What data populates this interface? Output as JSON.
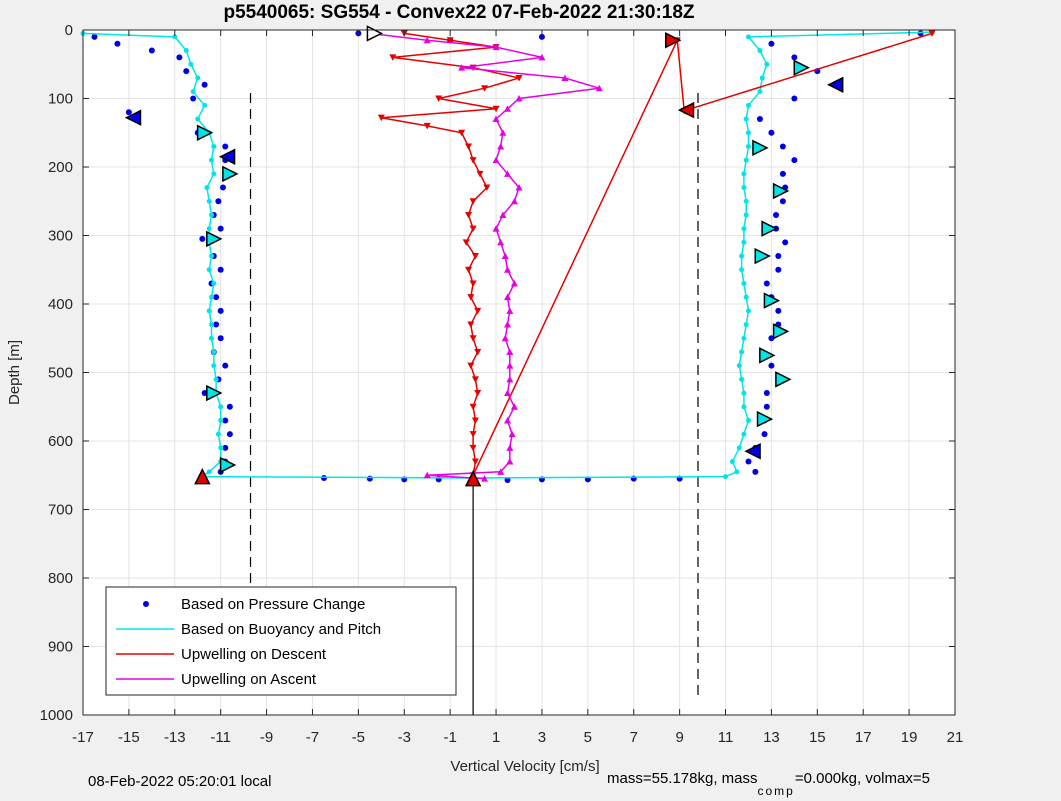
{
  "chart_data": {
    "type": "scatter",
    "title": "p5540065: SG554 - Convex22 07-Feb-2022 21:30:18Z",
    "xlabel": "Vertical Velocity [cm/s]",
    "ylabel": "Depth [m]",
    "xlim": [
      -17,
      21
    ],
    "ylim": [
      0,
      1000
    ],
    "y_reversed": true,
    "grid": true,
    "xticks": [
      -17,
      -15,
      -13,
      -11,
      -9,
      -7,
      -5,
      -3,
      -1,
      1,
      3,
      5,
      7,
      9,
      11,
      13,
      15,
      17,
      19,
      21
    ],
    "yticks": [
      0,
      100,
      200,
      300,
      400,
      500,
      600,
      700,
      800,
      900,
      1000
    ],
    "reference_lines": {
      "dashed_x": [
        -9.7,
        9.8
      ],
      "solid_x": [
        0
      ]
    },
    "legend": {
      "placement": "bottom-left",
      "entries": [
        {
          "label": "Based on Pressure Change",
          "color": "#0000e6",
          "style": "dots"
        },
        {
          "label": "Based on Buoyancy and Pitch",
          "color": "#00e6e6",
          "style": "line"
        },
        {
          "label": "Upwelling on Descent",
          "color": "#e60000",
          "style": "line"
        },
        {
          "label": "Upwelling on Ascent",
          "color": "#e600e6",
          "style": "line"
        }
      ]
    },
    "series": [
      {
        "name": "Based on Pressure Change",
        "color": "#0000e6",
        "points": [
          [
            -16.5,
            10
          ],
          [
            -15.5,
            20
          ],
          [
            -14.0,
            30
          ],
          [
            -12.8,
            40
          ],
          [
            -12.5,
            60
          ],
          [
            -11.7,
            80
          ],
          [
            -12.2,
            100
          ],
          [
            -15.0,
            120
          ],
          [
            -14.8,
            128
          ],
          [
            -12.0,
            150
          ],
          [
            -10.8,
            170
          ],
          [
            -10.8,
            190
          ],
          [
            -10.5,
            210
          ],
          [
            -10.9,
            230
          ],
          [
            -11.1,
            250
          ],
          [
            -11.3,
            270
          ],
          [
            -11.0,
            290
          ],
          [
            -11.8,
            305
          ],
          [
            -11.3,
            330
          ],
          [
            -11.0,
            350
          ],
          [
            -11.4,
            370
          ],
          [
            -11.2,
            390
          ],
          [
            -11.0,
            410
          ],
          [
            -11.2,
            430
          ],
          [
            -11.0,
            450
          ],
          [
            -11.3,
            470
          ],
          [
            -10.8,
            490
          ],
          [
            -11.1,
            510
          ],
          [
            -11.7,
            530
          ],
          [
            -10.6,
            550
          ],
          [
            -10.8,
            570
          ],
          [
            -10.6,
            590
          ],
          [
            -10.8,
            610
          ],
          [
            -10.8,
            630
          ],
          [
            -11.0,
            645
          ],
          [
            -6.5,
            654
          ],
          [
            -4.5,
            655
          ],
          [
            -3.0,
            656
          ],
          [
            -1.5,
            656
          ],
          [
            1.5,
            657
          ],
          [
            3.0,
            656
          ],
          [
            5.0,
            656
          ],
          [
            7.0,
            655
          ],
          [
            9.0,
            655
          ],
          [
            13.0,
            20
          ],
          [
            14.0,
            40
          ],
          [
            15.0,
            60
          ],
          [
            16.0,
            80
          ],
          [
            14.0,
            100
          ],
          [
            12.5,
            130
          ],
          [
            13.0,
            150
          ],
          [
            13.5,
            170
          ],
          [
            14.0,
            190
          ],
          [
            13.5,
            210
          ],
          [
            13.6,
            230
          ],
          [
            13.5,
            250
          ],
          [
            13.2,
            270
          ],
          [
            13.2,
            290
          ],
          [
            13.6,
            310
          ],
          [
            13.3,
            330
          ],
          [
            13.3,
            350
          ],
          [
            12.8,
            370
          ],
          [
            13.0,
            390
          ],
          [
            13.3,
            410
          ],
          [
            13.3,
            430
          ],
          [
            13.0,
            450
          ],
          [
            12.6,
            470
          ],
          [
            13.0,
            490
          ],
          [
            13.3,
            510
          ],
          [
            12.8,
            530
          ],
          [
            12.8,
            550
          ],
          [
            12.7,
            570
          ],
          [
            12.7,
            590
          ],
          [
            12.3,
            610
          ],
          [
            12.0,
            630
          ],
          [
            12.3,
            645
          ],
          [
            -5.0,
            5
          ],
          [
            -1.0,
            15
          ],
          [
            3.0,
            10
          ],
          [
            19.5,
            5
          ]
        ]
      },
      {
        "name": "Based on Buoyancy and Pitch",
        "color": "#00e6e6",
        "points": [
          [
            -17.0,
            5
          ],
          [
            -13.0,
            10
          ],
          [
            -12.5,
            30
          ],
          [
            -12.3,
            50
          ],
          [
            -12.0,
            70
          ],
          [
            -12.2,
            90
          ],
          [
            -11.7,
            110
          ],
          [
            -12.0,
            130
          ],
          [
            -11.5,
            150
          ],
          [
            -11.3,
            170
          ],
          [
            -11.4,
            190
          ],
          [
            -11.3,
            210
          ],
          [
            -11.6,
            230
          ],
          [
            -11.5,
            250
          ],
          [
            -11.4,
            270
          ],
          [
            -11.5,
            290
          ],
          [
            -11.5,
            310
          ],
          [
            -11.4,
            330
          ],
          [
            -11.5,
            350
          ],
          [
            -11.3,
            370
          ],
          [
            -11.4,
            390
          ],
          [
            -11.5,
            410
          ],
          [
            -11.4,
            430
          ],
          [
            -11.4,
            450
          ],
          [
            -11.3,
            470
          ],
          [
            -11.3,
            490
          ],
          [
            -11.2,
            510
          ],
          [
            -11.2,
            530
          ],
          [
            -11.0,
            550
          ],
          [
            -11.0,
            570
          ],
          [
            -11.1,
            590
          ],
          [
            -11.0,
            610
          ],
          [
            -11.0,
            630
          ],
          [
            -11.5,
            645
          ],
          [
            -11.8,
            652
          ],
          [
            0.0,
            654
          ],
          [
            11.0,
            652
          ],
          [
            11.5,
            645
          ],
          [
            11.3,
            630
          ],
          [
            11.6,
            610
          ],
          [
            11.8,
            590
          ],
          [
            12.0,
            570
          ],
          [
            11.8,
            550
          ],
          [
            11.8,
            530
          ],
          [
            11.7,
            510
          ],
          [
            11.6,
            490
          ],
          [
            11.7,
            470
          ],
          [
            11.8,
            450
          ],
          [
            11.9,
            430
          ],
          [
            12.0,
            410
          ],
          [
            11.9,
            390
          ],
          [
            11.8,
            370
          ],
          [
            11.7,
            350
          ],
          [
            11.7,
            330
          ],
          [
            11.8,
            310
          ],
          [
            11.8,
            290
          ],
          [
            11.9,
            270
          ],
          [
            11.9,
            250
          ],
          [
            11.8,
            230
          ],
          [
            11.8,
            210
          ],
          [
            11.9,
            190
          ],
          [
            12.0,
            170
          ],
          [
            12.0,
            150
          ],
          [
            11.9,
            130
          ],
          [
            12.0,
            110
          ],
          [
            12.5,
            90
          ],
          [
            12.6,
            70
          ],
          [
            12.8,
            50
          ],
          [
            12.5,
            30
          ],
          [
            12.0,
            10
          ],
          [
            20.0,
            3
          ]
        ]
      },
      {
        "name": "Upwelling on Descent",
        "color": "#e60000",
        "points": [
          [
            -3.0,
            5
          ],
          [
            -1.0,
            15
          ],
          [
            1.0,
            25
          ],
          [
            -3.5,
            40
          ],
          [
            0.0,
            55
          ],
          [
            2.0,
            70
          ],
          [
            0.5,
            85
          ],
          [
            -1.5,
            100
          ],
          [
            1.0,
            115
          ],
          [
            -4.0,
            128
          ],
          [
            -2.0,
            140
          ],
          [
            -0.5,
            150
          ],
          [
            -0.2,
            170
          ],
          [
            0.0,
            190
          ],
          [
            0.3,
            210
          ],
          [
            0.6,
            230
          ],
          [
            0.0,
            250
          ],
          [
            -0.2,
            270
          ],
          [
            0.0,
            290
          ],
          [
            -0.3,
            310
          ],
          [
            0.1,
            330
          ],
          [
            -0.2,
            350
          ],
          [
            0.0,
            370
          ],
          [
            -0.1,
            390
          ],
          [
            0.2,
            410
          ],
          [
            -0.1,
            430
          ],
          [
            0.0,
            450
          ],
          [
            0.2,
            470
          ],
          [
            -0.1,
            490
          ],
          [
            0.1,
            510
          ],
          [
            0.2,
            530
          ],
          [
            0.0,
            550
          ],
          [
            0.1,
            570
          ],
          [
            0.0,
            590
          ],
          [
            0.0,
            610
          ],
          [
            0.1,
            630
          ],
          [
            0.0,
            650
          ],
          [
            8.9,
            15
          ],
          [
            9.2,
            118
          ],
          [
            20.0,
            5
          ]
        ]
      },
      {
        "name": "Upwelling on Ascent",
        "color": "#e600e6",
        "points": [
          [
            -4.5,
            5
          ],
          [
            -2.0,
            15
          ],
          [
            1.0,
            25
          ],
          [
            3.0,
            40
          ],
          [
            -0.5,
            55
          ],
          [
            4.0,
            70
          ],
          [
            5.5,
            85
          ],
          [
            2.0,
            100
          ],
          [
            1.5,
            115
          ],
          [
            1.0,
            130
          ],
          [
            1.3,
            150
          ],
          [
            1.2,
            170
          ],
          [
            1.0,
            190
          ],
          [
            1.5,
            210
          ],
          [
            2.0,
            230
          ],
          [
            1.8,
            250
          ],
          [
            1.3,
            270
          ],
          [
            1.0,
            290
          ],
          [
            1.2,
            310
          ],
          [
            1.4,
            330
          ],
          [
            1.5,
            350
          ],
          [
            1.8,
            370
          ],
          [
            1.5,
            390
          ],
          [
            1.6,
            410
          ],
          [
            1.5,
            430
          ],
          [
            1.4,
            450
          ],
          [
            1.6,
            470
          ],
          [
            1.6,
            490
          ],
          [
            1.6,
            510
          ],
          [
            1.5,
            530
          ],
          [
            1.8,
            550
          ],
          [
            1.5,
            570
          ],
          [
            1.7,
            590
          ],
          [
            1.6,
            610
          ],
          [
            1.6,
            630
          ],
          [
            1.2,
            645
          ],
          [
            -2.0,
            650
          ],
          [
            0.5,
            655
          ]
        ]
      }
    ],
    "markers": [
      {
        "x": -4.3,
        "y": 5,
        "shape": "tri-right",
        "fill": "#ffffff"
      },
      {
        "x": 8.7,
        "y": 15,
        "shape": "tri-right",
        "fill": "#e60000"
      },
      {
        "x": 14.3,
        "y": 55,
        "shape": "tri-right",
        "fill": "#00e6e6"
      },
      {
        "x": 15.8,
        "y": 80,
        "shape": "tri-left",
        "fill": "#0000e6"
      },
      {
        "x": 9.3,
        "y": 117,
        "shape": "tri-left",
        "fill": "#e60000"
      },
      {
        "x": -14.8,
        "y": 128,
        "shape": "tri-left",
        "fill": "#0000e6"
      },
      {
        "x": -11.7,
        "y": 150,
        "shape": "tri-right",
        "fill": "#00e6e6"
      },
      {
        "x": 12.5,
        "y": 172,
        "shape": "tri-right",
        "fill": "#00e6e6"
      },
      {
        "x": -10.7,
        "y": 185,
        "shape": "tri-left",
        "fill": "#0000e6"
      },
      {
        "x": -10.6,
        "y": 210,
        "shape": "tri-right",
        "fill": "#00e6e6"
      },
      {
        "x": 13.4,
        "y": 235,
        "shape": "tri-right",
        "fill": "#00e6e6"
      },
      {
        "x": 12.9,
        "y": 290,
        "shape": "tri-right",
        "fill": "#00e6e6"
      },
      {
        "x": -11.3,
        "y": 305,
        "shape": "tri-right",
        "fill": "#00e6e6"
      },
      {
        "x": 12.6,
        "y": 330,
        "shape": "tri-right",
        "fill": "#00e6e6"
      },
      {
        "x": 13.0,
        "y": 395,
        "shape": "tri-right",
        "fill": "#00e6e6"
      },
      {
        "x": 13.4,
        "y": 440,
        "shape": "tri-right",
        "fill": "#00e6e6"
      },
      {
        "x": 12.8,
        "y": 475,
        "shape": "tri-right",
        "fill": "#00e6e6"
      },
      {
        "x": 13.5,
        "y": 510,
        "shape": "tri-right",
        "fill": "#00e6e6"
      },
      {
        "x": -11.3,
        "y": 530,
        "shape": "tri-right",
        "fill": "#00e6e6"
      },
      {
        "x": 12.7,
        "y": 568,
        "shape": "tri-right",
        "fill": "#00e6e6"
      },
      {
        "x": 12.2,
        "y": 615,
        "shape": "tri-left",
        "fill": "#0000e6"
      },
      {
        "x": -10.7,
        "y": 635,
        "shape": "tri-right",
        "fill": "#00e6e6"
      },
      {
        "x": -11.8,
        "y": 652,
        "shape": "tri-up",
        "fill": "#e60000"
      },
      {
        "x": 0.0,
        "y": 655,
        "shape": "tri-up",
        "fill": "#e60000"
      }
    ]
  },
  "footer": {
    "left_text": "08-Feb-2022 05:20:01 local",
    "right_text_a": "mass=55.178kg, mass",
    "right_sub": "comp",
    "right_text_b": "=0.000kg, volmax=5"
  }
}
